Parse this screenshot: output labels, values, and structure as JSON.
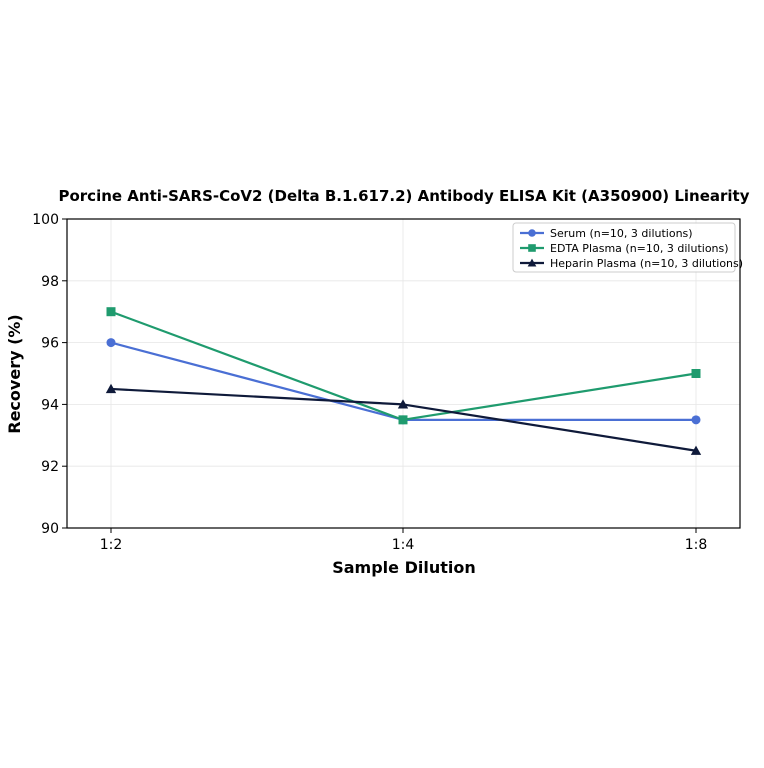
{
  "chart_data": {
    "type": "line",
    "title": "Porcine Anti-SARS-CoV2 (Delta B.1.617.2) Antibody ELISA Kit (A350900) Linearity",
    "xlabel": "Sample Dilution",
    "ylabel": "Recovery (%)",
    "categories": [
      "1:2",
      "1:4",
      "1:8"
    ],
    "ylim": [
      90,
      100
    ],
    "yticks": [
      90,
      92,
      94,
      96,
      98,
      100
    ],
    "grid": true,
    "legend_position": "top-right",
    "series": [
      {
        "name": "Serum (n=10, 3 dilutions)",
        "values": [
          96,
          93.5,
          93.5
        ],
        "color": "#4a6fd4",
        "marker": "circle"
      },
      {
        "name": "EDTA Plasma (n=10, 3 dilutions)",
        "values": [
          97,
          93.5,
          95
        ],
        "color": "#1f9b6e",
        "marker": "square"
      },
      {
        "name": "Heparin Plasma (n=10, 3 dilutions)",
        "values": [
          94.5,
          94,
          92.5
        ],
        "color": "#0f1a3a",
        "marker": "triangle"
      }
    ]
  }
}
